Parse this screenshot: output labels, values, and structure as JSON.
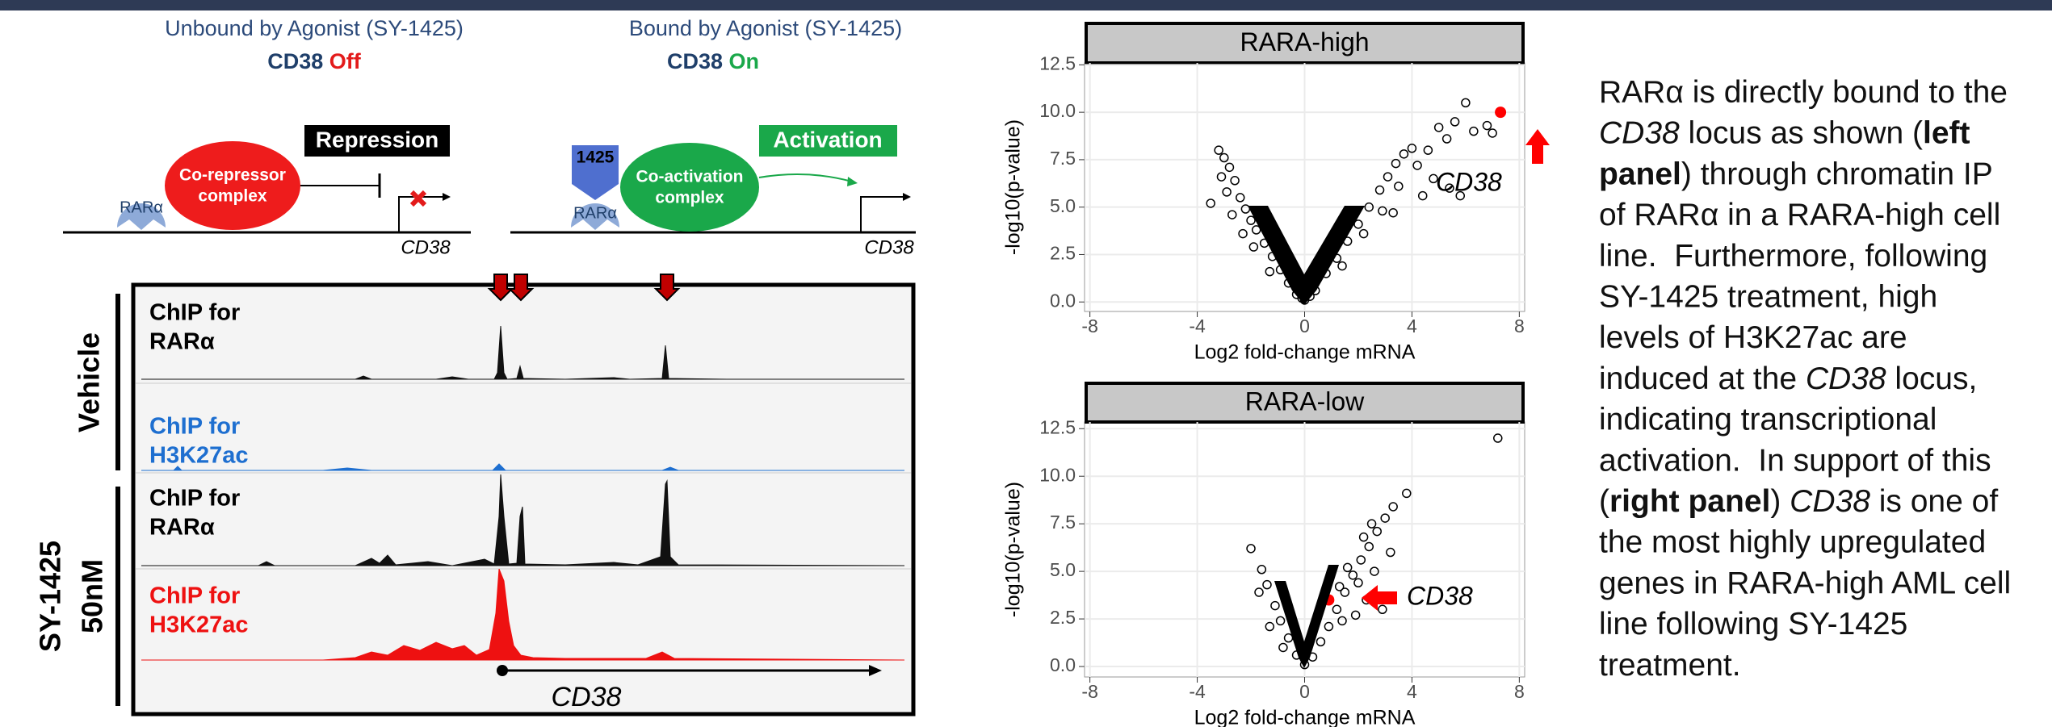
{
  "diagram": {
    "unbound": {
      "title": "Unbound by Agonist (SY-1425)",
      "gene": "CD38",
      "state": "Off",
      "box": "Repression",
      "complex": [
        "Co-repressor",
        "complex"
      ],
      "receptor": "RARα",
      "locus": "CD38"
    },
    "bound": {
      "title": "Bound by Agonist (SY-1425)",
      "gene": "CD38",
      "state": "On",
      "box": "Activation",
      "complex": [
        "Co-activation",
        "complex"
      ],
      "ligand": "1425",
      "receptor": "RARα",
      "locus": "CD38"
    }
  },
  "tracks": {
    "groups": [
      [
        "Vehicle"
      ],
      [
        "SY-1425",
        "50nM"
      ]
    ],
    "rows": [
      [
        "ChIP for",
        "RARα"
      ],
      [
        "ChIP for",
        "H3K27ac"
      ],
      [
        "ChIP for",
        "RARα"
      ],
      [
        "ChIP for",
        "H3K27ac"
      ]
    ],
    "gene": "CD38"
  },
  "chart_data": [
    {
      "type": "scatter",
      "title": "RARA-high",
      "x_label": "Log2 fold-change mRNA",
      "y_label": "-log10(p-value)",
      "xlim": [
        -8.2,
        8.2
      ],
      "ylim": [
        -0.5,
        12.6
      ],
      "xticks": [
        -8,
        -4,
        0,
        4,
        8
      ],
      "yticks": [
        {
          "value": 0,
          "label": "0.0"
        },
        {
          "value": 2.5,
          "label": "2.5"
        },
        {
          "value": 5,
          "label": "5.0"
        },
        {
          "value": 7.5,
          "label": "7.5"
        },
        {
          "value": 10,
          "label": "10.0"
        },
        {
          "value": 12.5,
          "label": "12.5"
        }
      ],
      "grid": true,
      "x": [
        -3.2,
        -3,
        -2.8,
        -3.1,
        -2.6,
        -2.9,
        -2.4,
        -2.2,
        -2,
        -1.8,
        -1.5,
        -1.2,
        -0.9,
        -0.6,
        -0.3,
        -3.5,
        -2.7,
        -2.3,
        -1.9,
        -1.3,
        0,
        0.2,
        -0.1,
        0.4,
        0.8,
        1.2,
        1.6,
        2,
        2.4,
        2.8,
        3.1,
        3.4,
        3.7,
        4,
        2.2,
        2.9,
        3.5,
        4.2,
        4.6,
        5,
        5.3,
        5.6,
        6,
        6.3,
        6.8,
        7,
        4.8,
        5.4,
        5.8,
        4.4,
        3.3,
        1.4
      ],
      "y": [
        8,
        7.6,
        7.1,
        6.6,
        6.4,
        5.8,
        5.5,
        4.9,
        4.3,
        3.8,
        3.1,
        2.4,
        1.7,
        1,
        0.4,
        5.2,
        4.6,
        3.6,
        2.9,
        1.6,
        0.1,
        0.3,
        0.2,
        0.6,
        1.5,
        2.3,
        3.2,
        4.1,
        5,
        5.9,
        6.6,
        7.3,
        7.8,
        8.1,
        3.6,
        4.8,
        6.1,
        7.2,
        8,
        9.2,
        8.6,
        9.5,
        10.5,
        9,
        9.3,
        8.9,
        6.5,
        6,
        5.6,
        5.6,
        4.7,
        1.9
      ],
      "highlight": {
        "x": 7.3,
        "y": 10,
        "label": "CD38",
        "color": "#ff0000"
      }
    },
    {
      "type": "scatter",
      "title": "RARA-low",
      "x_label": "Log2 fold-change mRNA",
      "y_label": "-log10(p-value)",
      "xlim": [
        -8.2,
        8.2
      ],
      "ylim": [
        -0.55,
        12.85
      ],
      "xticks": [
        -8,
        -4,
        0,
        4,
        8
      ],
      "yticks": [
        {
          "value": 0,
          "label": "0.0"
        },
        {
          "value": 2.5,
          "label": "2.5"
        },
        {
          "value": 5,
          "label": "5.0"
        },
        {
          "value": 7.5,
          "label": "7.5"
        },
        {
          "value": 10,
          "label": "10.0"
        },
        {
          "value": 12.5,
          "label": "12.5"
        }
      ],
      "grid": true,
      "x": [
        -2,
        -1.6,
        -1.4,
        -1.7,
        -1.1,
        -0.9,
        -0.6,
        -0.3,
        -1.3,
        -0.8,
        0,
        0.3,
        0.6,
        0.9,
        1.2,
        1.5,
        1.8,
        2.1,
        2.4,
        2.7,
        3,
        3.3,
        3.8,
        2.5,
        2.2,
        1.6,
        1.3,
        2,
        2.3,
        2.9,
        1.9,
        1.4,
        7.2,
        2.6,
        3.2
      ],
      "y": [
        6.2,
        5.1,
        4.3,
        3.9,
        3.2,
        2.4,
        1.5,
        0.6,
        2.1,
        1,
        0.1,
        0.5,
        1.3,
        2.1,
        3,
        3.9,
        4.8,
        5.6,
        6.3,
        7.1,
        7.8,
        8.4,
        9.1,
        7.5,
        6.8,
        5.2,
        4.2,
        4.4,
        3.5,
        3,
        2.7,
        2.4,
        12,
        5,
        6
      ],
      "highlight": {
        "x": 0.9,
        "y": 3.5,
        "label": "CD38",
        "color": "#ff0000"
      }
    }
  ],
  "text_panel": {
    "lines": [
      [
        {
          "t": "RARα is directly bound to the"
        }
      ],
      [
        {
          "t": "CD38",
          "i": true
        },
        {
          "t": " locus as shown ("
        },
        {
          "t": "left",
          "b": true
        }
      ],
      [
        {
          "t": "panel",
          "b": true
        },
        {
          "t": ") through chromatin IP"
        }
      ],
      [
        {
          "t": "of RARα in a RARA-high cell"
        }
      ],
      [
        {
          "t": "line.  Furthermore, following"
        }
      ],
      [
        {
          "t": "SY-1425 treatment, high"
        }
      ],
      [
        {
          "t": "levels of H3K27ac are"
        }
      ],
      [
        {
          "t": "induced at the "
        },
        {
          "t": "CD38",
          "i": true
        },
        {
          "t": " locus,"
        }
      ],
      [
        {
          "t": "indicating transcriptional"
        }
      ],
      [
        {
          "t": "activation.  In support of this"
        }
      ],
      [
        {
          "t": "("
        },
        {
          "t": "right panel",
          "b": true
        },
        {
          "t": ") "
        },
        {
          "t": "CD38",
          "i": true
        },
        {
          "t": " is one of"
        }
      ],
      [
        {
          "t": "the most highly upregulated"
        }
      ],
      [
        {
          "t": "genes in RARA-high AML cell"
        }
      ],
      [
        {
          "t": "line following SY-1425"
        }
      ],
      [
        {
          "t": "treatment."
        }
      ]
    ]
  }
}
